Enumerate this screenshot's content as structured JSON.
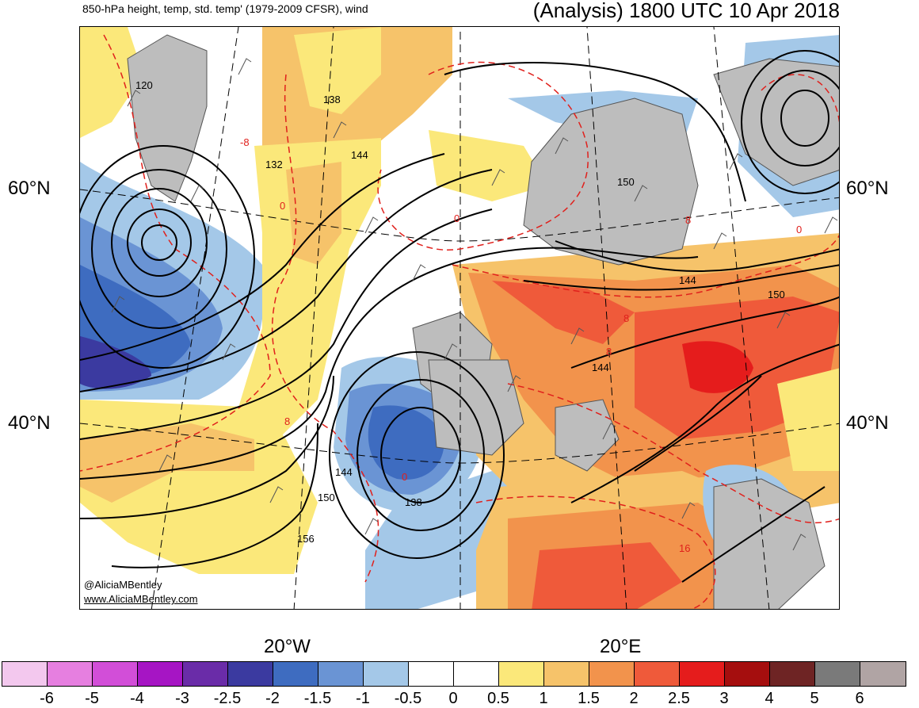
{
  "header": {
    "left_title": "850-hPa height, temp, std. temp' (1979-2009 CFSR), wind",
    "right_title": "(Analysis) 1800 UTC 10 Apr 2018"
  },
  "map": {
    "lat_labels": [
      "60°N",
      "40°N"
    ],
    "lon_labels": [
      "20°W",
      "20°E"
    ],
    "height_contour_labels": [
      "120",
      "138",
      "132",
      "144",
      "150",
      "144",
      "150",
      "144",
      "144",
      "150",
      "138",
      "156"
    ],
    "temp_contour_labels": [
      "-8",
      "0",
      "0",
      "8",
      "0",
      "8",
      "8",
      "8",
      "0",
      "16"
    ],
    "credit_handle": "@AliciaMBentley",
    "credit_url": "www.AliciaMBentley.com"
  },
  "colorbar": {
    "labels": [
      "-6",
      "-5",
      "-4",
      "-3",
      "-2.5",
      "-2",
      "-1.5",
      "-1",
      "-0.5",
      "0",
      "0.5",
      "1",
      "1.5",
      "2",
      "2.5",
      "3",
      "4",
      "5",
      "6"
    ],
    "colors": [
      "#f3c8ee",
      "#e67fe0",
      "#d24ed8",
      "#a615c4",
      "#6a2ca8",
      "#3b3aa0",
      "#3e6cc0",
      "#6a94d4",
      "#a4c8e8",
      "#ffffff",
      "#ffffff",
      "#fbe87a",
      "#f6c36a",
      "#f2934c",
      "#ef5a3a",
      "#e51c1c",
      "#a50e0e",
      "#6e2424",
      "#7a7a7a",
      "#b0a4a4"
    ]
  }
}
